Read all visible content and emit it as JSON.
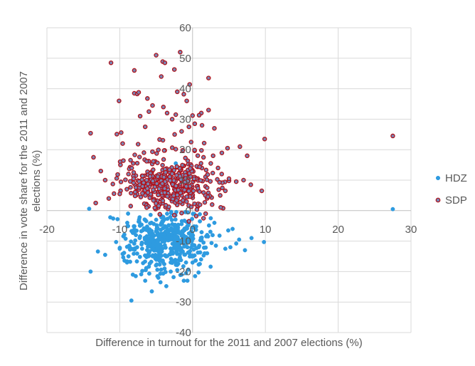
{
  "chart_data": {
    "type": "scatter",
    "title": "",
    "xlabel": "Difference in turnout for the 2011 and 2007 elections (%)",
    "ylabel_lines": [
      "Difference in vote share for the 2011 and 2007",
      "elections (%)"
    ],
    "xlim": [
      -20,
      30
    ],
    "ylim": [
      -40,
      60
    ],
    "x_ticks": [
      -20,
      -10,
      0,
      10,
      20,
      30
    ],
    "y_ticks": [
      60,
      50,
      40,
      30,
      20,
      10,
      0,
      -10,
      -20,
      -30,
      -40
    ],
    "x_tick_labels": [
      "-20",
      "-10",
      "0",
      "10",
      "20",
      "30"
    ],
    "y_tick_labels": [
      "60",
      "50",
      "40",
      "30",
      "20",
      "10",
      "0",
      "-10",
      "-20",
      "-30",
      "-40"
    ],
    "grid": true,
    "legend_position": "right",
    "series": [
      {
        "name": "HDZ",
        "color": "#2E9BE0",
        "edge_color": "#2E9BE0",
        "cluster": {
          "count": 430,
          "x_mean": -3.5,
          "x_sd": 3.0,
          "y_mean": -9.5,
          "y_sd": 4.8,
          "x_min": -10,
          "x_max": 3,
          "y_min": -22,
          "y_max": -0.3
        },
        "points": [
          [
            -14.2,
            0.6
          ],
          [
            27.5,
            0.5
          ],
          [
            -11.3,
            -2.2
          ],
          [
            -10.9,
            -2.6
          ],
          [
            -10.3,
            -2.8
          ],
          [
            -13.0,
            -13.4
          ],
          [
            -10.5,
            -10.3
          ],
          [
            -14.0,
            -20.0
          ],
          [
            -12.0,
            -14.5
          ],
          [
            -9.0,
            -17.0
          ],
          [
            -8.2,
            -21.0
          ],
          [
            -7.8,
            -21.5
          ],
          [
            -8.4,
            -29.5
          ],
          [
            -6.5,
            -23.0
          ],
          [
            -4.7,
            -22.0
          ],
          [
            -4.4,
            -23.5
          ],
          [
            -5.6,
            -26.5
          ],
          [
            -3.6,
            -24.8
          ],
          [
            -1.2,
            -23.0
          ],
          [
            -0.7,
            -23.0
          ],
          [
            8.1,
            -9.0
          ],
          [
            6.4,
            -9.5
          ],
          [
            9.8,
            -10.3
          ],
          [
            5.2,
            -12.0
          ],
          [
            4.5,
            -12.5
          ],
          [
            6.0,
            -10.8
          ],
          [
            3.2,
            -11.5
          ],
          [
            3.7,
            -8.2
          ],
          [
            4.9,
            -6.5
          ],
          [
            5.5,
            -6.0
          ],
          [
            2.0,
            -8.0
          ],
          [
            1.5,
            -10.5
          ],
          [
            -0.9,
            -17.0
          ],
          [
            -2.1,
            -19.5
          ],
          [
            0.4,
            -16.4
          ],
          [
            -6.9,
            -19.8
          ],
          [
            -8.8,
            -15.0
          ],
          [
            -9.6,
            -14.2
          ],
          [
            -10.0,
            -12.5
          ],
          [
            -9.5,
            -8.4
          ],
          [
            -8.0,
            -6.2
          ],
          [
            -7.0,
            -4.6
          ],
          [
            -5.0,
            -3.0
          ],
          [
            -3.5,
            -1.0
          ],
          [
            -1.0,
            -0.5
          ],
          [
            1.0,
            -1.2
          ],
          [
            2.5,
            -2.5
          ],
          [
            3.0,
            -4.0
          ],
          [
            -2.3,
            15.5
          ],
          [
            0.5,
            -5.2
          ],
          [
            7.2,
            -13.0
          ],
          [
            2.0,
            -14.0
          ],
          [
            1.0,
            -17.5
          ],
          [
            -1.5,
            -21.0
          ],
          [
            -3.0,
            -20.0
          ]
        ]
      },
      {
        "name": "SDP",
        "color": "#7A86B4",
        "edge_color": "#B0111A",
        "cluster": {
          "count": 400,
          "x_mean": -3.2,
          "x_sd": 3.2,
          "y_mean": 8.5,
          "y_sd": 5.5,
          "x_min": -11,
          "x_max": 5,
          "y_min": 0.3,
          "y_max": 30
        },
        "points": [
          [
            -14.0,
            25.4
          ],
          [
            -13.6,
            17.5
          ],
          [
            -11.2,
            48.5
          ],
          [
            -10.4,
            25.1
          ],
          [
            -9.8,
            25.6
          ],
          [
            -9.6,
            22.0
          ],
          [
            -8.0,
            38.5
          ],
          [
            -7.6,
            38.3
          ],
          [
            -7.4,
            38.8
          ],
          [
            -6.2,
            36.8
          ],
          [
            -5.0,
            51.0
          ],
          [
            -4.1,
            48.9
          ],
          [
            -4.3,
            44.0
          ],
          [
            -2.5,
            46.3
          ],
          [
            -1.7,
            52.0
          ],
          [
            -3.8,
            48.5
          ],
          [
            -8.0,
            46.0
          ],
          [
            -10.1,
            36.0
          ],
          [
            -1.2,
            38.2
          ],
          [
            -0.4,
            41.4
          ],
          [
            1.2,
            32.0
          ],
          [
            2.2,
            43.5
          ],
          [
            2.2,
            33.0
          ],
          [
            3.0,
            27.0
          ],
          [
            4.8,
            20.5
          ],
          [
            6.5,
            21.0
          ],
          [
            7.5,
            18.0
          ],
          [
            9.9,
            23.5
          ],
          [
            9.5,
            6.5
          ],
          [
            27.5,
            24.5
          ],
          [
            -12.0,
            10.0
          ],
          [
            -12.6,
            13.0
          ],
          [
            -9.9,
            15.0
          ],
          [
            -9.5,
            16.4
          ],
          [
            -8.8,
            12.0
          ],
          [
            -10.0,
            5.5
          ],
          [
            -7.2,
            31.0
          ],
          [
            -6.0,
            32.5
          ],
          [
            -6.5,
            27.5
          ],
          [
            -5.5,
            34.5
          ],
          [
            -4.0,
            34.0
          ],
          [
            -3.5,
            32.0
          ],
          [
            -2.8,
            30.0
          ],
          [
            -2.3,
            31.5
          ],
          [
            0.0,
            31.2
          ],
          [
            0.9,
            31.3
          ],
          [
            0.3,
            28.5
          ],
          [
            1.3,
            28.0
          ],
          [
            -0.5,
            27.5
          ],
          [
            -1.5,
            26.0
          ],
          [
            -0.8,
            36.0
          ],
          [
            -2.1,
            39.0
          ],
          [
            -0.2,
            22.5
          ],
          [
            1.5,
            17.5
          ],
          [
            2.5,
            15.5
          ],
          [
            3.5,
            14.0
          ],
          [
            4.0,
            12.0
          ],
          [
            5.0,
            10.5
          ],
          [
            6.0,
            9.5
          ],
          [
            7.0,
            10.0
          ],
          [
            8.0,
            8.5
          ],
          [
            4.5,
            6.5
          ],
          [
            3.8,
            5.0
          ],
          [
            -13.3,
            2.5
          ],
          [
            -11.5,
            4.0
          ],
          [
            -8.5,
            1.5
          ],
          [
            -6.3,
            1.0
          ],
          [
            -1.5,
            -0.8
          ],
          [
            1.5,
            -2.5
          ],
          [
            -0.5,
            -3.5
          ],
          [
            -4.5,
            -1.2
          ],
          [
            -2.5,
            -1.5
          ],
          [
            0.5,
            -1.8
          ],
          [
            1.8,
            -1.0
          ]
        ]
      }
    ]
  }
}
